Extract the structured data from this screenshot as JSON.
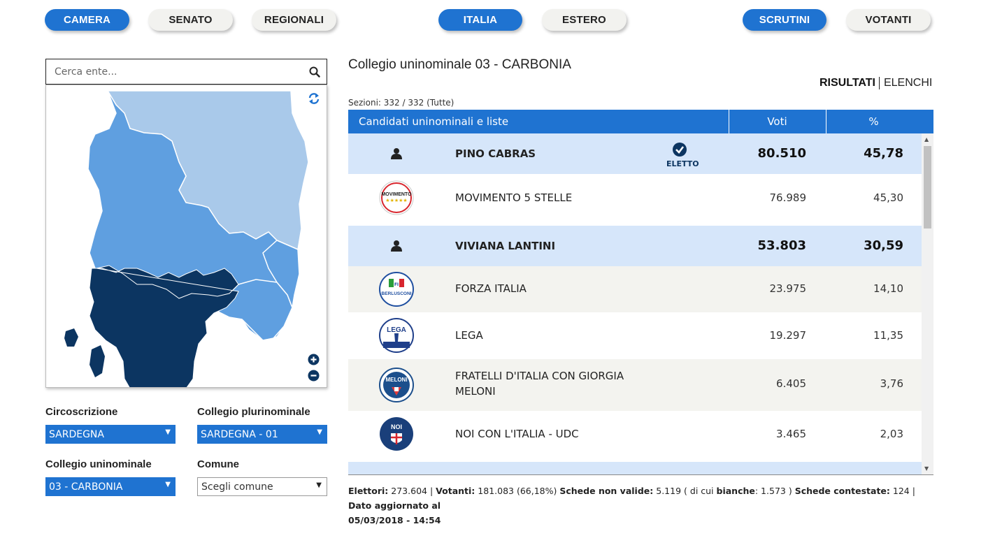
{
  "nav": {
    "camera": "CAMERA",
    "senato": "SENATO",
    "regionali": "REGIONALI",
    "italia": "ITALIA",
    "estero": "ESTERO",
    "scrutini": "SCRUTINI",
    "votanti": "VOTANTI"
  },
  "search": {
    "placeholder": "Cerca ente..."
  },
  "map": {
    "colors": {
      "light": "#a9c9ea",
      "medium": "#5f9fe0",
      "dark": "#0c3561"
    },
    "controls": [
      "refresh-icon",
      "zoom-in-icon",
      "zoom-out-icon"
    ]
  },
  "filters": {
    "circoscrizione_label": "Circoscrizione",
    "circoscrizione_value": "SARDEGNA",
    "plurinominale_label": "Collegio plurinominale",
    "plurinominale_value": "SARDEGNA - 01",
    "uninominale_label": "Collegio uninominale",
    "uninominale_value": "03 - CARBONIA",
    "comune_label": "Comune",
    "comune_value": "Scegli comune"
  },
  "results": {
    "title": "Collegio uninominale 03 - CARBONIA",
    "tab_results": "RISULTATI",
    "tab_lists": "ELENCHI",
    "sezioni": "Sezioni: 332 / 332 (Tutte)",
    "headers": {
      "candidates": "Candidati uninominali e liste",
      "votes": "Voti",
      "pct": "%"
    },
    "elected_label": "ELETTO",
    "rows": [
      {
        "kind": "candidate",
        "name": "PINO CABRAS",
        "votes": "80.510",
        "pct": "45,78",
        "elected": true
      },
      {
        "kind": "list",
        "name": "MOVIMENTO 5 STELLE",
        "votes": "76.989",
        "pct": "45,30",
        "logo": "M5S",
        "logo_text": "MOVIMENTO"
      },
      {
        "kind": "candidate",
        "name": "VIVIANA LANTINI",
        "votes": "53.803",
        "pct": "30,59",
        "elected": false
      },
      {
        "kind": "list",
        "name": "FORZA ITALIA",
        "votes": "23.975",
        "pct": "14,10",
        "logo": "FI",
        "logo_text": "BERLUSCONI"
      },
      {
        "kind": "list",
        "name": "LEGA",
        "votes": "19.297",
        "pct": "11,35",
        "logo": "LEGA",
        "logo_text": "LEGA"
      },
      {
        "kind": "list",
        "name": "FRATELLI D'ITALIA CON GIORGIA",
        "name2": "MELONI",
        "votes": "6.405",
        "pct": "3,76",
        "logo": "FDI",
        "logo_text": "MELONI"
      },
      {
        "kind": "list",
        "name": "NOI CON L'ITALIA - UDC",
        "votes": "3.465",
        "pct": "2,03",
        "logo": "NCI",
        "logo_text": "NOI"
      }
    ]
  },
  "footer": {
    "elettori_label": "Elettori:",
    "elettori": "273.604",
    "votanti_label": "Votanti:",
    "votanti": "181.083 (66,18%)",
    "non_valide_label": "Schede non valide:",
    "non_valide": "5.119",
    "di_cui": "( di cui",
    "bianche_label": "bianche",
    "bianche": ": 1.573 )",
    "contestate_label": "Schede contestate:",
    "contestate": "124",
    "aggiornato_label": "Dato aggiornato al",
    "aggiornato": "05/03/2018 - 14:54"
  }
}
